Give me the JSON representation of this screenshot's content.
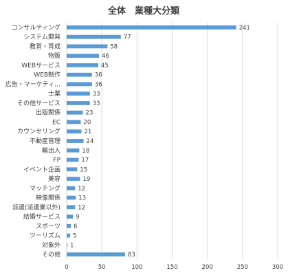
{
  "chart_data": {
    "type": "bar",
    "orientation": "horizontal",
    "title": "全体　業種大分類",
    "xlabel": "",
    "ylabel": "",
    "xlim": [
      0,
      300
    ],
    "x_ticks": [
      0,
      50,
      100,
      150,
      200,
      250,
      300
    ],
    "grid": true,
    "bar_color": "#5b9bd5",
    "categories": [
      "コンサルティング",
      "システム開発",
      "教育・育成",
      "物販",
      "WEBサービス",
      "WEB制作",
      "広告・マーケティ…",
      "士業",
      "その他サービス",
      "出版関係",
      "EC",
      "カウンセリング",
      "不動産管理",
      "輸出入",
      "FP",
      "イベント企画",
      "美容",
      "マッチング",
      "映像関係",
      "派遣(派遣業以外)",
      "結婚サービス",
      "スポーツ",
      "ツーリズム",
      "対象外",
      "その他"
    ],
    "values": [
      241,
      77,
      58,
      46,
      45,
      36,
      36,
      33,
      33,
      23,
      20,
      21,
      24,
      18,
      17,
      15,
      19,
      12,
      13,
      12,
      9,
      6,
      5,
      1,
      83
    ]
  }
}
